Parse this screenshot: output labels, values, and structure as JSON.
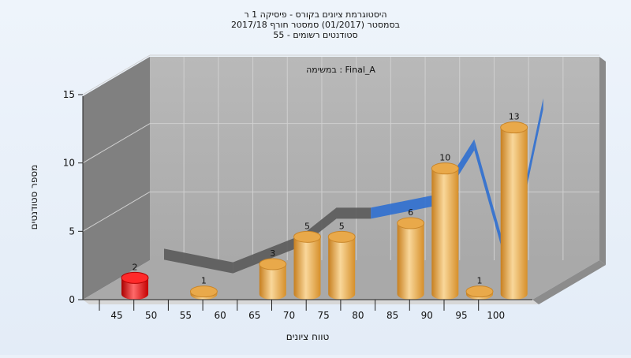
{
  "chart_data": {
    "type": "bar",
    "title_lines": [
      "היסטוגרמת ציונים בקורס - פיסיקה 1 ר",
      "בסמסטר  (01/2017)  סמסטר חורף  2017/18",
      "סטודנטים רשומים - 55"
    ],
    "annotation": "במשימה : Final_A",
    "xlabel": "טווח ציונים",
    "ylabel": "מספר סטודנטים",
    "ylim": [
      0,
      15
    ],
    "yticks": [
      0,
      5,
      10,
      15
    ],
    "x_tick_labels": [
      "45",
      "50",
      "55",
      "60",
      "65",
      "70",
      "75",
      "80",
      "85",
      "90",
      "95",
      "100"
    ],
    "categories": [
      "45",
      "55",
      "65",
      "70",
      "75",
      "85",
      "90",
      "95",
      "100"
    ],
    "values": [
      2,
      1,
      3,
      5,
      5,
      6,
      10,
      1,
      13
    ],
    "colors": [
      "#e01818",
      "#e8a23c",
      "#e8a23c",
      "#e8a23c",
      "#e8a23c",
      "#e8a23c",
      "#e8a23c",
      "#e8a23c",
      "#e8a23c"
    ],
    "trend_colors": {
      "back": "#5a5a5a",
      "front": "#2f6fd0"
    },
    "grid": true,
    "legend": "none"
  }
}
